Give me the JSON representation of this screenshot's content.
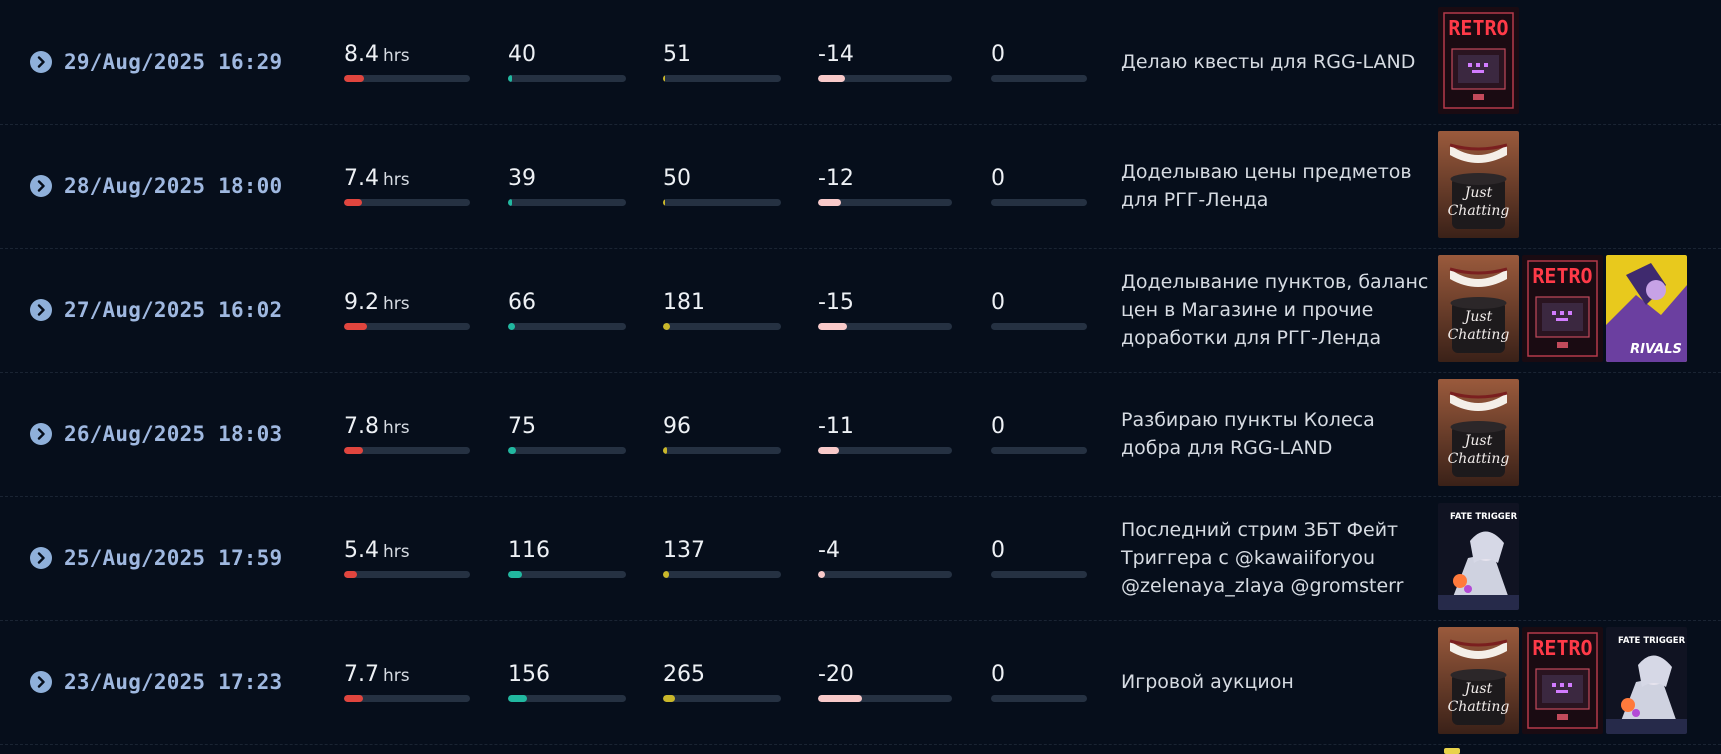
{
  "units": {
    "hours": "hrs"
  },
  "colors": {
    "date": "#9fb8e0",
    "bar_track": "#253142",
    "duration": "#e0453e",
    "avg_viewers": "#21b8a0",
    "peak_viewers": "#c9b72a",
    "followers": "#f8c9c9",
    "subs": "#3a4556"
  },
  "thumbnail_labels": {
    "retro": "RETRO",
    "just_chatting": "Just Chatting",
    "rivals": "RIVALS",
    "fate_trigger": "FATE TRIGGER"
  },
  "streams": [
    {
      "date": "29/Aug/2025 16:29",
      "duration": "8.4",
      "duration_fill": 0.16,
      "avg_viewers": "40",
      "avg_fill": 0.03,
      "peak_viewers": "51",
      "peak_fill": 0.02,
      "followers_change": "-14",
      "followers_fill": 0.2,
      "subs": "0",
      "subs_fill": 0,
      "title": "Делаю квесты для RGG-LAND",
      "thumbnails": [
        {
          "icon": "retro-thumbnail-icon",
          "label_key": "retro"
        }
      ]
    },
    {
      "date": "28/Aug/2025 18:00",
      "duration": "7.4",
      "duration_fill": 0.14,
      "avg_viewers": "39",
      "avg_fill": 0.03,
      "peak_viewers": "50",
      "peak_fill": 0.02,
      "followers_change": "-12",
      "followers_fill": 0.17,
      "subs": "0",
      "subs_fill": 0,
      "title": "Доделываю цены предметов для РГГ-Ленда",
      "thumbnails": [
        {
          "icon": "just-chatting-thumbnail-icon",
          "label_key": "just_chatting"
        }
      ]
    },
    {
      "date": "27/Aug/2025 16:02",
      "duration": "9.2",
      "duration_fill": 0.18,
      "avg_viewers": "66",
      "avg_fill": 0.06,
      "peak_viewers": "181",
      "peak_fill": 0.06,
      "followers_change": "-15",
      "followers_fill": 0.22,
      "subs": "0",
      "subs_fill": 0,
      "title": "Доделывание пунктов, баланс цен в Магазине и прочие доработки для РГГ-Ленда",
      "thumbnails": [
        {
          "icon": "just-chatting-thumbnail-icon",
          "label_key": "just_chatting"
        },
        {
          "icon": "retro-thumbnail-icon",
          "label_key": "retro"
        },
        {
          "icon": "rivals-thumbnail-icon",
          "label_key": "rivals"
        }
      ]
    },
    {
      "date": "26/Aug/2025 18:03",
      "duration": "7.8",
      "duration_fill": 0.15,
      "avg_viewers": "75",
      "avg_fill": 0.07,
      "peak_viewers": "96",
      "peak_fill": 0.03,
      "followers_change": "-11",
      "followers_fill": 0.16,
      "subs": "0",
      "subs_fill": 0,
      "title": "Разбираю пункты Колеса добра для RGG-LAND",
      "thumbnails": [
        {
          "icon": "just-chatting-thumbnail-icon",
          "label_key": "just_chatting"
        }
      ]
    },
    {
      "date": "25/Aug/2025 17:59",
      "duration": "5.4",
      "duration_fill": 0.1,
      "avg_viewers": "116",
      "avg_fill": 0.12,
      "peak_viewers": "137",
      "peak_fill": 0.05,
      "followers_change": "-4",
      "followers_fill": 0.05,
      "subs": "0",
      "subs_fill": 0,
      "title": "Последний стрим ЗБТ Фейт Триггера с @kawaiiforyou @zelenaya_zlaya @gromsterr",
      "thumbnails": [
        {
          "icon": "fate-trigger-thumbnail-icon",
          "label_key": "fate_trigger"
        }
      ]
    },
    {
      "date": "23/Aug/2025 17:23",
      "duration": "7.7",
      "duration_fill": 0.15,
      "avg_viewers": "156",
      "avg_fill": 0.16,
      "peak_viewers": "265",
      "peak_fill": 0.1,
      "followers_change": "-20",
      "followers_fill": 0.33,
      "subs": "0",
      "subs_fill": 0,
      "title": "Игровой аукцион",
      "thumbnails": [
        {
          "icon": "just-chatting-thumbnail-icon",
          "label_key": "just_chatting"
        },
        {
          "icon": "retro-thumbnail-icon",
          "label_key": "retro"
        },
        {
          "icon": "fate-trigger-thumbnail-icon",
          "label_key": "fate_trigger"
        }
      ]
    }
  ]
}
